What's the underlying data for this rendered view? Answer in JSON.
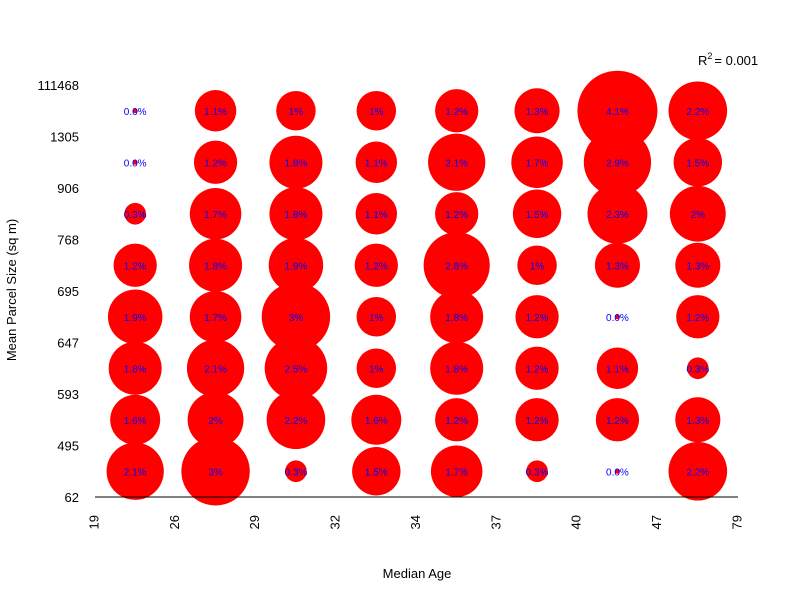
{
  "chart_data": {
    "type": "scatter",
    "title": "",
    "xlabel": "Median Age",
    "ylabel": "Mean Parcel Size (sq m)",
    "x_breaks": [
      "19",
      "26",
      "29",
      "32",
      "34",
      "37",
      "40",
      "47",
      "79"
    ],
    "y_breaks": [
      "62",
      "495",
      "593",
      "647",
      "695",
      "768",
      "906",
      "1305",
      "111468"
    ],
    "annotation": {
      "prefix": "R",
      "superscript": "2",
      "text": "= 0.001"
    },
    "colors": {
      "bubble": "#ff0000",
      "label": "#0000ff",
      "axis": "#000000"
    },
    "rows": [
      {
        "y_bin": "62-495",
        "values": [
          2.1,
          3.0,
          0.3,
          1.5,
          1.7,
          0.3,
          0.0,
          2.2
        ],
        "labels": [
          "2.1%",
          "3%",
          "0.3%",
          "1.5%",
          "1.7%",
          "0.3%",
          "0.0%",
          "2.2%"
        ]
      },
      {
        "y_bin": "495-593",
        "values": [
          1.6,
          2.0,
          2.2,
          1.6,
          1.2,
          1.2,
          1.2,
          1.3
        ],
        "labels": [
          "1.6%",
          "2%",
          "2.2%",
          "1.6%",
          "1.2%",
          "1.2%",
          "1.2%",
          "1.3%"
        ]
      },
      {
        "y_bin": "593-647",
        "values": [
          1.8,
          2.1,
          2.5,
          1.0,
          1.8,
          1.2,
          1.1,
          0.3
        ],
        "labels": [
          "1.8%",
          "2.1%",
          "2.5%",
          "1%",
          "1.8%",
          "1.2%",
          "1.1%",
          "0.3%"
        ]
      },
      {
        "y_bin": "647-695",
        "values": [
          1.9,
          1.7,
          3.0,
          1.0,
          1.8,
          1.2,
          0.0,
          1.2
        ],
        "labels": [
          "1.9%",
          "1.7%",
          "3%",
          "1%",
          "1.8%",
          "1.2%",
          "0.0%",
          "1.2%"
        ]
      },
      {
        "y_bin": "695-768",
        "values": [
          1.2,
          1.8,
          1.9,
          1.2,
          2.8,
          1.0,
          1.3,
          1.3
        ],
        "labels": [
          "1.2%",
          "1.8%",
          "1.9%",
          "1.2%",
          "2.8%",
          "1%",
          "1.3%",
          "1.3%"
        ]
      },
      {
        "y_bin": "768-906",
        "values": [
          0.3,
          1.7,
          1.8,
          1.1,
          1.2,
          1.5,
          2.3,
          2.0
        ],
        "labels": [
          "0.3%",
          "1.7%",
          "1.8%",
          "1.1%",
          "1.2%",
          "1.5%",
          "2.3%",
          "2%"
        ]
      },
      {
        "y_bin": "906-1305",
        "values": [
          0.0,
          1.2,
          1.8,
          1.1,
          2.1,
          1.7,
          2.9,
          1.5
        ],
        "labels": [
          "0.0%",
          "1.2%",
          "1.8%",
          "1.1%",
          "2.1%",
          "1.7%",
          "2.9%",
          "1.5%"
        ]
      },
      {
        "y_bin": "1305-111468",
        "values": [
          0.0,
          1.1,
          1.0,
          1.0,
          1.2,
          1.3,
          4.1,
          2.2
        ],
        "labels": [
          "0.0%",
          "1.1%",
          "1%",
          "1%",
          "1.2%",
          "1.3%",
          "4.1%",
          "2.2%"
        ]
      }
    ]
  }
}
